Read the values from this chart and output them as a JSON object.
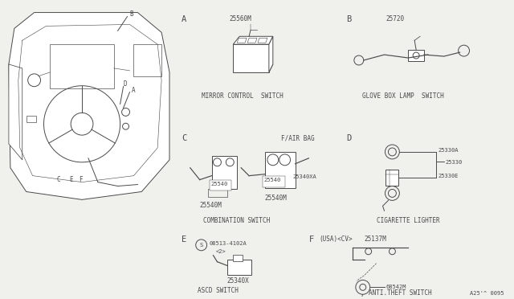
{
  "bg_color": "#f0f0ec",
  "line_color": "#4a4a4a",
  "sections": {
    "A": {
      "label": "A",
      "part": "25560M",
      "caption": "MIRROR CONTROL  SWITCH"
    },
    "B": {
      "label": "B",
      "part": "25720",
      "caption": "GLOVE BOX LAMP  SWITCH"
    },
    "C": {
      "label": "C",
      "parts": [
        "25540M",
        "25540",
        "25540M"
      ],
      "caption": "COMBINATION SWITCH",
      "airbag": "F/AIR BAG",
      "sub": "25340XA"
    },
    "D": {
      "label": "D",
      "parts": [
        "25330A",
        "25330",
        "25330E"
      ],
      "caption": "CIGARETTE LIGHTER"
    },
    "E": {
      "label": "E",
      "screw": "08513-4102A",
      "screw2": "<2>",
      "part": "25340X",
      "caption": "ASCD SWITCH"
    },
    "F": {
      "label": "F",
      "note": "(USA)<CV>",
      "part1": "25137M",
      "part2": "68542M",
      "caption": "ANTI.THEFT SWITCH"
    }
  },
  "page_code": "A25'^ 0095",
  "lw": 0.7,
  "fs_base": 6.0,
  "fs_label": 7.5,
  "fs_small": 5.5
}
